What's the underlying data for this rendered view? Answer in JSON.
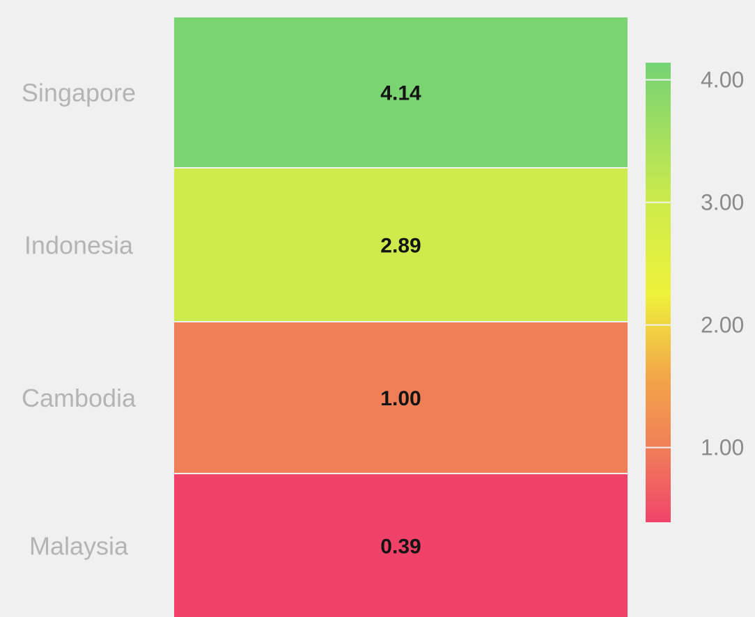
{
  "chart_data": {
    "type": "heatmap",
    "categories": [
      "Singapore",
      "Indonesia",
      "Cambodia",
      "Malaysia"
    ],
    "values": [
      4.14,
      2.89,
      1.0,
      0.39
    ],
    "value_labels": [
      "4.14",
      "2.89",
      "1.00",
      "0.39"
    ],
    "cell_colors": [
      "#7ad472",
      "#cdeb4b",
      "#f07f57",
      "#f04268"
    ],
    "colorscale": {
      "min": 0.39,
      "max": 4.14,
      "ticks": [
        {
          "value": 4.0,
          "label": "4.00"
        },
        {
          "value": 3.0,
          "label": "3.00"
        },
        {
          "value": 2.0,
          "label": "2.00"
        },
        {
          "value": 1.0,
          "label": "1.00"
        }
      ],
      "stops": [
        {
          "value": 0.39,
          "color": "#f0446a"
        },
        {
          "value": 1.0,
          "color": "#f07f57"
        },
        {
          "value": 1.6,
          "color": "#f2a848"
        },
        {
          "value": 2.25,
          "color": "#eef23a"
        },
        {
          "value": 3.0,
          "color": "#cdeb4b"
        },
        {
          "value": 4.14,
          "color": "#74d374"
        }
      ]
    },
    "legend": "right",
    "title": "",
    "xlabel": "",
    "ylabel": ""
  }
}
